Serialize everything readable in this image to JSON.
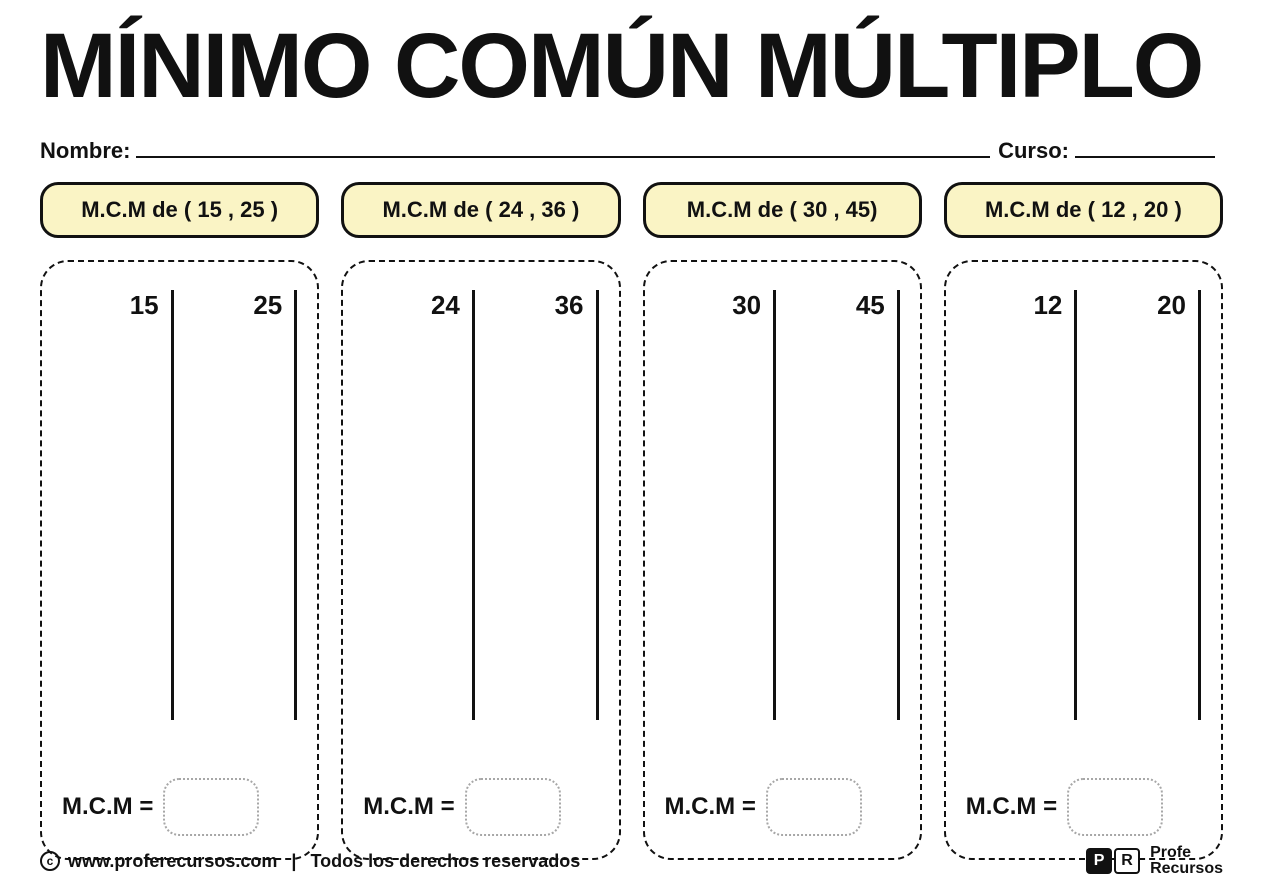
{
  "title": "MÍNIMO COMÚN MÚLTIPLO",
  "meta": {
    "name_label": "Nombre:",
    "course_label": "Curso:"
  },
  "pill_prefix": "M.C.M de",
  "answer_label": "M.C.M =",
  "columns": [
    {
      "pair_text": "( 15 , 25 )",
      "a": "15",
      "b": "25"
    },
    {
      "pair_text": "( 24 , 36 )",
      "a": "24",
      "b": "36"
    },
    {
      "pair_text": "( 30 , 45)",
      "a": "30",
      "b": "45"
    },
    {
      "pair_text": "( 12 , 20 )",
      "a": "12",
      "b": "20"
    }
  ],
  "footer": {
    "site": "www.proferecursos.com",
    "rights": "Todos los derechos reservados",
    "brand_line1": "Profe",
    "brand_line2": "Recursos",
    "badge_p": "P",
    "badge_r": "R"
  },
  "colors": {
    "pill_bg": "#faf4c5",
    "text": "#111111",
    "ansbox_border": "#a7a7a7",
    "background": "#ffffff"
  }
}
